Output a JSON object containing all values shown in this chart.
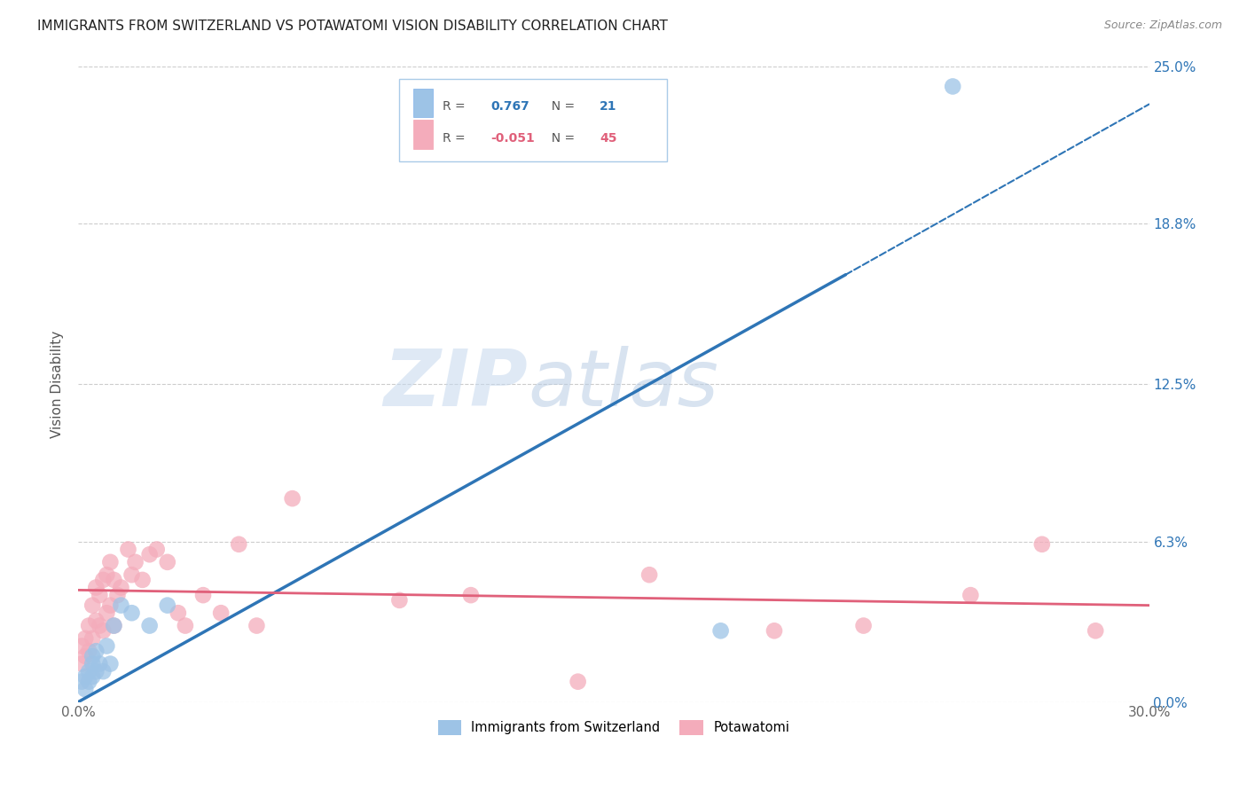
{
  "title": "IMMIGRANTS FROM SWITZERLAND VS POTAWATOMI VISION DISABILITY CORRELATION CHART",
  "source": "Source: ZipAtlas.com",
  "ylabel": "Vision Disability",
  "xlim": [
    0.0,
    0.3
  ],
  "ylim": [
    0.0,
    0.25
  ],
  "ytick_labels": [
    "0.0%",
    "6.3%",
    "12.5%",
    "18.8%",
    "25.0%"
  ],
  "ytick_values": [
    0.0,
    0.063,
    0.125,
    0.188,
    0.25
  ],
  "R_blue": 0.767,
  "N_blue": 21,
  "R_pink": -0.051,
  "N_pink": 45,
  "blue_color": "#9DC3E6",
  "pink_color": "#F4ACBB",
  "blue_line_color": "#2E75B6",
  "pink_line_color": "#E0607A",
  "watermark_zip": "ZIP",
  "watermark_atlas": "atlas",
  "blue_scatter_x": [
    0.001,
    0.002,
    0.002,
    0.003,
    0.003,
    0.004,
    0.004,
    0.004,
    0.005,
    0.005,
    0.006,
    0.007,
    0.008,
    0.009,
    0.01,
    0.012,
    0.015,
    0.02,
    0.025,
    0.18,
    0.245
  ],
  "blue_scatter_y": [
    0.008,
    0.005,
    0.01,
    0.008,
    0.012,
    0.01,
    0.015,
    0.018,
    0.012,
    0.02,
    0.015,
    0.012,
    0.022,
    0.015,
    0.03,
    0.038,
    0.035,
    0.03,
    0.038,
    0.028,
    0.242
  ],
  "pink_scatter_x": [
    0.001,
    0.001,
    0.002,
    0.002,
    0.003,
    0.003,
    0.004,
    0.004,
    0.005,
    0.005,
    0.006,
    0.006,
    0.007,
    0.007,
    0.008,
    0.008,
    0.009,
    0.009,
    0.01,
    0.01,
    0.011,
    0.012,
    0.014,
    0.015,
    0.016,
    0.018,
    0.02,
    0.022,
    0.025,
    0.028,
    0.03,
    0.035,
    0.04,
    0.045,
    0.05,
    0.06,
    0.09,
    0.11,
    0.14,
    0.16,
    0.195,
    0.22,
    0.25,
    0.27,
    0.285
  ],
  "pink_scatter_y": [
    0.015,
    0.022,
    0.018,
    0.025,
    0.02,
    0.03,
    0.025,
    0.038,
    0.032,
    0.045,
    0.03,
    0.042,
    0.028,
    0.048,
    0.035,
    0.05,
    0.038,
    0.055,
    0.03,
    0.048,
    0.042,
    0.045,
    0.06,
    0.05,
    0.055,
    0.048,
    0.058,
    0.06,
    0.055,
    0.035,
    0.03,
    0.042,
    0.035,
    0.062,
    0.03,
    0.08,
    0.04,
    0.042,
    0.008,
    0.05,
    0.028,
    0.03,
    0.042,
    0.062,
    0.028
  ],
  "blue_line_x_solid_start": 0.0,
  "blue_line_x_solid_end": 0.215,
  "blue_line_x_dash_end": 0.3,
  "blue_line_y_start": 0.0,
  "blue_line_y_at_solid_end": 0.168,
  "blue_line_y_at_dash_end": 0.235,
  "pink_line_y_start": 0.044,
  "pink_line_y_end": 0.038
}
